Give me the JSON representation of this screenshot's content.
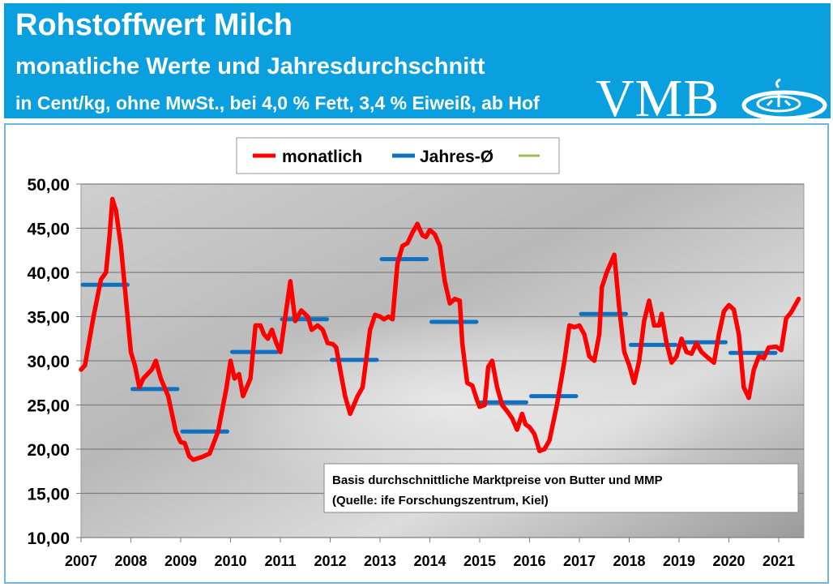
{
  "header": {
    "title": "Rohstoffwert Milch",
    "subtitle": "monatliche Werte und Jahresdurchschnitt",
    "unit_line": "in Cent/kg, ohne MwSt., bei 4,0 % Fett, 3,4 % Eiweiß, ab Hof",
    "logo": "VMB",
    "color": "#0aa0e0"
  },
  "chart_data": {
    "type": "line",
    "title": "",
    "xlabel": "",
    "ylabel": "",
    "ylim": [
      10,
      50
    ],
    "xlim": [
      2007,
      2021.5
    ],
    "y_ticks": [
      "10,00",
      "15,00",
      "20,00",
      "25,00",
      "30,00",
      "35,00",
      "40,00",
      "45,00",
      "50,00"
    ],
    "x_ticks": [
      "2007",
      "2008",
      "2009",
      "2010",
      "2011",
      "2012",
      "2013",
      "2014",
      "2015",
      "2016",
      "2017",
      "2018",
      "2019",
      "2020",
      "2021"
    ],
    "grid": true,
    "legend_position": "top",
    "legend": [
      "monatlich",
      "Jahres-Ø",
      ""
    ],
    "colors": {
      "monatlich": "#ff0000",
      "jahres": "#1070c0",
      "third": "#9bbb59"
    },
    "series": [
      {
        "name": "monatlich",
        "points": [
          [
            2007.0,
            29.0
          ],
          [
            2007.08,
            29.5
          ],
          [
            2007.25,
            35
          ],
          [
            2007.4,
            39.2
          ],
          [
            2007.5,
            40
          ],
          [
            2007.57,
            44
          ],
          [
            2007.63,
            48.3
          ],
          [
            2007.7,
            47
          ],
          [
            2007.8,
            43
          ],
          [
            2007.9,
            37
          ],
          [
            2008.0,
            31
          ],
          [
            2008.08,
            29.5
          ],
          [
            2008.17,
            27
          ],
          [
            2008.25,
            28
          ],
          [
            2008.42,
            29
          ],
          [
            2008.5,
            30
          ],
          [
            2008.6,
            28
          ],
          [
            2008.75,
            26
          ],
          [
            2008.9,
            22
          ],
          [
            2009.0,
            20.8
          ],
          [
            2009.08,
            20.7
          ],
          [
            2009.17,
            19.2
          ],
          [
            2009.25,
            18.8
          ],
          [
            2009.42,
            19.1
          ],
          [
            2009.58,
            19.5
          ],
          [
            2009.75,
            22
          ],
          [
            2009.92,
            27
          ],
          [
            2010.0,
            30
          ],
          [
            2010.08,
            28
          ],
          [
            2010.17,
            28.5
          ],
          [
            2010.25,
            26
          ],
          [
            2010.4,
            28
          ],
          [
            2010.5,
            34
          ],
          [
            2010.6,
            34
          ],
          [
            2010.67,
            33
          ],
          [
            2010.75,
            32.5
          ],
          [
            2010.83,
            33.5
          ],
          [
            2010.92,
            32
          ],
          [
            2011.0,
            31
          ],
          [
            2011.1,
            35
          ],
          [
            2011.2,
            39
          ],
          [
            2011.3,
            34.5
          ],
          [
            2011.42,
            35.7
          ],
          [
            2011.55,
            35
          ],
          [
            2011.63,
            33.5
          ],
          [
            2011.75,
            34
          ],
          [
            2011.85,
            33.5
          ],
          [
            2011.95,
            32
          ],
          [
            2012.05,
            31.9
          ],
          [
            2012.12,
            31.5
          ],
          [
            2012.2,
            29
          ],
          [
            2012.3,
            26
          ],
          [
            2012.4,
            24
          ],
          [
            2012.55,
            26
          ],
          [
            2012.65,
            27
          ],
          [
            2012.8,
            33.5
          ],
          [
            2012.9,
            35.2
          ],
          [
            2013.0,
            35
          ],
          [
            2013.08,
            34.7
          ],
          [
            2013.17,
            35
          ],
          [
            2013.25,
            34.7
          ],
          [
            2013.35,
            41
          ],
          [
            2013.45,
            43
          ],
          [
            2013.55,
            43.3
          ],
          [
            2013.65,
            44.5
          ],
          [
            2013.75,
            45.5
          ],
          [
            2013.85,
            44.2
          ],
          [
            2013.92,
            44
          ],
          [
            2014.0,
            44.8
          ],
          [
            2014.1,
            44.3
          ],
          [
            2014.2,
            43
          ],
          [
            2014.3,
            39
          ],
          [
            2014.4,
            36.5
          ],
          [
            2014.5,
            37
          ],
          [
            2014.6,
            36.8
          ],
          [
            2014.65,
            32
          ],
          [
            2014.75,
            27.5
          ],
          [
            2014.85,
            27.2
          ],
          [
            2014.95,
            25.5
          ],
          [
            2015.0,
            24.8
          ],
          [
            2015.1,
            25
          ],
          [
            2015.17,
            29.3
          ],
          [
            2015.25,
            30
          ],
          [
            2015.35,
            27
          ],
          [
            2015.45,
            25
          ],
          [
            2015.55,
            24.3
          ],
          [
            2015.65,
            23.5
          ],
          [
            2015.75,
            22.2
          ],
          [
            2015.85,
            24
          ],
          [
            2015.92,
            22.8
          ],
          [
            2016.0,
            22.5
          ],
          [
            2016.1,
            21.7
          ],
          [
            2016.2,
            19.8
          ],
          [
            2016.3,
            20
          ],
          [
            2016.4,
            21
          ],
          [
            2016.55,
            25
          ],
          [
            2016.7,
            30
          ],
          [
            2016.8,
            34
          ],
          [
            2016.9,
            33.8
          ],
          [
            2017.0,
            34
          ],
          [
            2017.1,
            33
          ],
          [
            2017.2,
            30.5
          ],
          [
            2017.3,
            30
          ],
          [
            2017.4,
            33
          ],
          [
            2017.45,
            38.3
          ],
          [
            2017.55,
            40
          ],
          [
            2017.7,
            42
          ],
          [
            2017.8,
            36
          ],
          [
            2017.9,
            31
          ],
          [
            2018.0,
            29.5
          ],
          [
            2018.1,
            27.5
          ],
          [
            2018.2,
            30
          ],
          [
            2018.3,
            34.5
          ],
          [
            2018.4,
            36.8
          ],
          [
            2018.5,
            34
          ],
          [
            2018.6,
            34
          ],
          [
            2018.65,
            35.3
          ],
          [
            2018.75,
            32
          ],
          [
            2018.85,
            29.8
          ],
          [
            2018.95,
            30.5
          ],
          [
            2019.05,
            32.5
          ],
          [
            2019.15,
            31
          ],
          [
            2019.25,
            30.8
          ],
          [
            2019.35,
            32
          ],
          [
            2019.45,
            31
          ],
          [
            2019.55,
            30.5
          ],
          [
            2019.7,
            29.8
          ],
          [
            2019.8,
            33
          ],
          [
            2019.9,
            35.6
          ],
          [
            2020.0,
            36.3
          ],
          [
            2020.1,
            35.8
          ],
          [
            2020.2,
            33
          ],
          [
            2020.3,
            27
          ],
          [
            2020.4,
            25.8
          ],
          [
            2020.5,
            29
          ],
          [
            2020.6,
            30.5
          ],
          [
            2020.7,
            30.3
          ],
          [
            2020.8,
            31.5
          ],
          [
            2020.95,
            31.6
          ],
          [
            2021.05,
            31.2
          ],
          [
            2021.15,
            34.8
          ],
          [
            2021.25,
            35.5
          ],
          [
            2021.4,
            37
          ]
        ]
      },
      {
        "name": "Jahres-Ø",
        "years": [
          2007,
          2008,
          2009,
          2010,
          2011,
          2012,
          2013,
          2014,
          2015,
          2016,
          2017,
          2018,
          2019,
          2020
        ],
        "values": [
          38.6,
          26.8,
          22.0,
          31.0,
          34.7,
          30.1,
          41.5,
          34.4,
          25.3,
          26.0,
          35.3,
          31.8,
          32.1,
          30.9
        ]
      }
    ],
    "annotation": {
      "line1": "Basis durchschnittliche Marktpreise von Butter und MMP",
      "line2": "(Quelle: ife Forschungszentrum, Kiel)"
    }
  }
}
